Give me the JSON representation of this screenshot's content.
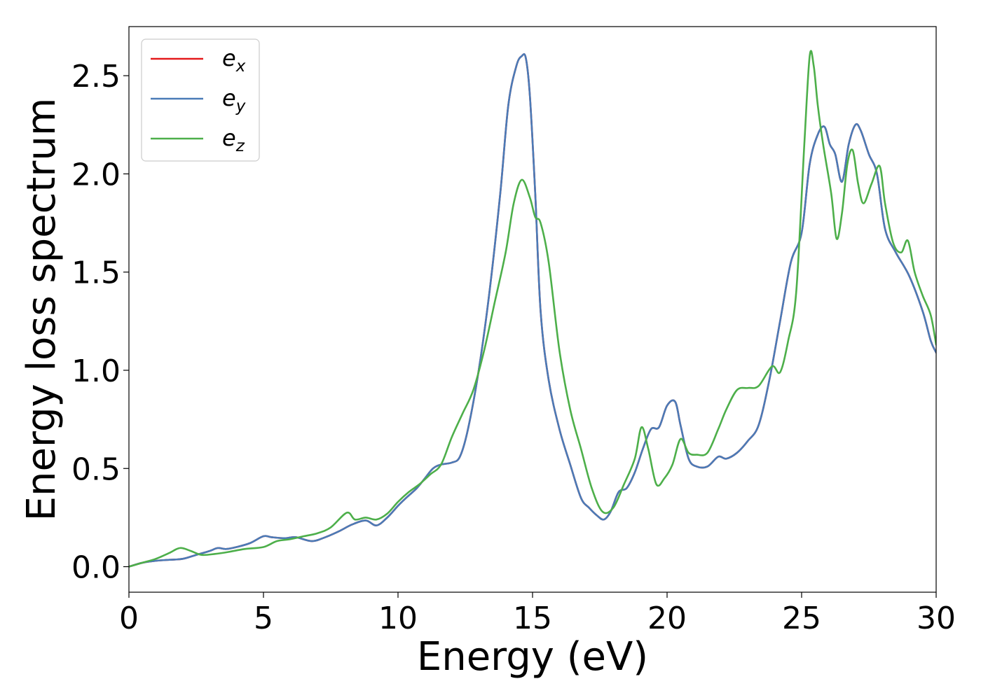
{
  "chart_data": {
    "type": "line",
    "title": "",
    "xlabel": "Energy (eV)",
    "ylabel": "Energy loss spectrum",
    "xlim": [
      0,
      30
    ],
    "ylim": [
      -0.13,
      2.75
    ],
    "xticks": [
      0,
      5,
      10,
      15,
      20,
      25,
      30
    ],
    "xtick_labels": [
      "0",
      "5",
      "10",
      "15",
      "20",
      "25",
      "30"
    ],
    "yticks": [
      0.0,
      0.5,
      1.0,
      1.5,
      2.0,
      2.5
    ],
    "ytick_labels": [
      "0.0",
      "0.5",
      "1.0",
      "1.5",
      "2.0",
      "2.5"
    ],
    "grid": false,
    "legend_position": "top-left",
    "series": [
      {
        "name": "e_x",
        "legend_base": "e",
        "legend_sub": "x",
        "color": "#e41a1c",
        "x": [
          0,
          0.5,
          1,
          1.5,
          2,
          2.5,
          3,
          3.3,
          3.6,
          4,
          4.5,
          5,
          5.3,
          5.8,
          6.2,
          6.8,
          7.3,
          7.8,
          8.3,
          8.8,
          9.2,
          9.6,
          10,
          10.3,
          10.7,
          11,
          11.3,
          11.6,
          12,
          12.3,
          12.6,
          13,
          13.4,
          13.8,
          14.1,
          14.4,
          14.6,
          14.75,
          14.9,
          15.1,
          15.3,
          15.6,
          16,
          16.4,
          16.8,
          17.1,
          17.4,
          17.65,
          17.9,
          18.2,
          18.5,
          18.8,
          19.1,
          19.4,
          19.7,
          20,
          20.3,
          20.5,
          20.8,
          21.1,
          21.5,
          21.9,
          22.2,
          22.6,
          23,
          23.4,
          23.8,
          24.2,
          24.6,
          25,
          25.3,
          25.6,
          25.85,
          26.05,
          26.25,
          26.5,
          26.75,
          27,
          27.2,
          27.5,
          27.8,
          28.1,
          28.5,
          29,
          29.5,
          29.8,
          30
        ],
        "y": [
          0.0,
          0.02,
          0.03,
          0.035,
          0.04,
          0.06,
          0.08,
          0.095,
          0.09,
          0.1,
          0.12,
          0.155,
          0.15,
          0.145,
          0.15,
          0.13,
          0.15,
          0.18,
          0.215,
          0.235,
          0.21,
          0.25,
          0.31,
          0.35,
          0.4,
          0.45,
          0.5,
          0.52,
          0.53,
          0.56,
          0.7,
          1.0,
          1.4,
          1.9,
          2.35,
          2.55,
          2.6,
          2.59,
          2.4,
          1.9,
          1.3,
          0.95,
          0.7,
          0.52,
          0.35,
          0.3,
          0.26,
          0.24,
          0.28,
          0.38,
          0.4,
          0.48,
          0.6,
          0.7,
          0.71,
          0.82,
          0.84,
          0.72,
          0.55,
          0.51,
          0.51,
          0.56,
          0.55,
          0.58,
          0.64,
          0.72,
          0.95,
          1.25,
          1.55,
          1.7,
          2.05,
          2.2,
          2.24,
          2.15,
          2.1,
          1.96,
          2.15,
          2.25,
          2.22,
          2.1,
          2.0,
          1.72,
          1.6,
          1.48,
          1.3,
          1.15,
          1.09
        ]
      },
      {
        "name": "e_y",
        "legend_base": "e",
        "legend_sub": "y",
        "color": "#4a7bb7",
        "x": [
          0,
          0.5,
          1,
          1.5,
          2,
          2.5,
          3,
          3.3,
          3.6,
          4,
          4.5,
          5,
          5.3,
          5.8,
          6.2,
          6.8,
          7.3,
          7.8,
          8.3,
          8.8,
          9.2,
          9.6,
          10,
          10.3,
          10.7,
          11,
          11.3,
          11.6,
          12,
          12.3,
          12.6,
          13,
          13.4,
          13.8,
          14.1,
          14.4,
          14.6,
          14.75,
          14.9,
          15.1,
          15.3,
          15.6,
          16,
          16.4,
          16.8,
          17.1,
          17.4,
          17.65,
          17.9,
          18.2,
          18.5,
          18.8,
          19.1,
          19.4,
          19.7,
          20,
          20.3,
          20.5,
          20.8,
          21.1,
          21.5,
          21.9,
          22.2,
          22.6,
          23,
          23.4,
          23.8,
          24.2,
          24.6,
          25,
          25.3,
          25.6,
          25.85,
          26.05,
          26.25,
          26.5,
          26.75,
          27,
          27.2,
          27.5,
          27.8,
          28.1,
          28.5,
          29,
          29.5,
          29.8,
          30
        ],
        "y": [
          0.0,
          0.02,
          0.03,
          0.035,
          0.04,
          0.06,
          0.08,
          0.095,
          0.09,
          0.1,
          0.12,
          0.155,
          0.15,
          0.145,
          0.15,
          0.13,
          0.15,
          0.18,
          0.215,
          0.235,
          0.21,
          0.25,
          0.31,
          0.35,
          0.4,
          0.45,
          0.5,
          0.52,
          0.53,
          0.56,
          0.7,
          1.0,
          1.4,
          1.9,
          2.35,
          2.55,
          2.6,
          2.59,
          2.4,
          1.9,
          1.3,
          0.95,
          0.7,
          0.52,
          0.35,
          0.3,
          0.26,
          0.24,
          0.28,
          0.38,
          0.4,
          0.48,
          0.6,
          0.7,
          0.71,
          0.82,
          0.84,
          0.72,
          0.55,
          0.51,
          0.51,
          0.56,
          0.55,
          0.58,
          0.64,
          0.72,
          0.95,
          1.25,
          1.55,
          1.7,
          2.05,
          2.2,
          2.24,
          2.15,
          2.1,
          1.96,
          2.15,
          2.25,
          2.22,
          2.1,
          2.0,
          1.72,
          1.6,
          1.48,
          1.3,
          1.15,
          1.09
        ]
      },
      {
        "name": "e_z",
        "legend_base": "e",
        "legend_sub": "z",
        "color": "#4daf4a",
        "x": [
          0,
          0.5,
          1,
          1.5,
          1.9,
          2.3,
          2.7,
          3.2,
          3.7,
          4.3,
          5,
          5.5,
          6,
          6.5,
          7,
          7.5,
          8.1,
          8.4,
          8.8,
          9.2,
          9.6,
          10,
          10.4,
          10.8,
          11.2,
          11.6,
          12,
          12.4,
          12.8,
          13.2,
          13.6,
          14,
          14.3,
          14.6,
          14.9,
          15.1,
          15.3,
          15.6,
          16,
          16.4,
          16.8,
          17.2,
          17.6,
          18,
          18.4,
          18.8,
          19.05,
          19.3,
          19.6,
          19.9,
          20.2,
          20.5,
          20.8,
          21.1,
          21.5,
          21.9,
          22.2,
          22.6,
          23,
          23.4,
          23.9,
          24.2,
          24.5,
          24.8,
          25.1,
          25.3,
          25.45,
          25.6,
          25.8,
          26.1,
          26.3,
          26.5,
          26.7,
          26.9,
          27.1,
          27.3,
          27.6,
          27.9,
          28.1,
          28.4,
          28.7,
          28.95,
          29.2,
          29.5,
          29.8,
          30
        ],
        "y": [
          0.0,
          0.02,
          0.04,
          0.07,
          0.095,
          0.08,
          0.06,
          0.065,
          0.075,
          0.09,
          0.1,
          0.13,
          0.14,
          0.155,
          0.17,
          0.2,
          0.275,
          0.24,
          0.25,
          0.24,
          0.27,
          0.33,
          0.38,
          0.42,
          0.47,
          0.52,
          0.66,
          0.78,
          0.9,
          1.1,
          1.35,
          1.6,
          1.85,
          1.97,
          1.88,
          1.78,
          1.75,
          1.55,
          1.1,
          0.8,
          0.6,
          0.4,
          0.28,
          0.3,
          0.42,
          0.55,
          0.71,
          0.6,
          0.42,
          0.45,
          0.52,
          0.65,
          0.58,
          0.57,
          0.58,
          0.7,
          0.8,
          0.9,
          0.91,
          0.92,
          1.02,
          0.99,
          1.15,
          1.4,
          2.15,
          2.6,
          2.55,
          2.35,
          2.15,
          1.9,
          1.67,
          1.8,
          2.05,
          2.12,
          1.95,
          1.85,
          1.95,
          2.04,
          1.85,
          1.65,
          1.6,
          1.66,
          1.5,
          1.38,
          1.28,
          1.13
        ]
      }
    ]
  }
}
